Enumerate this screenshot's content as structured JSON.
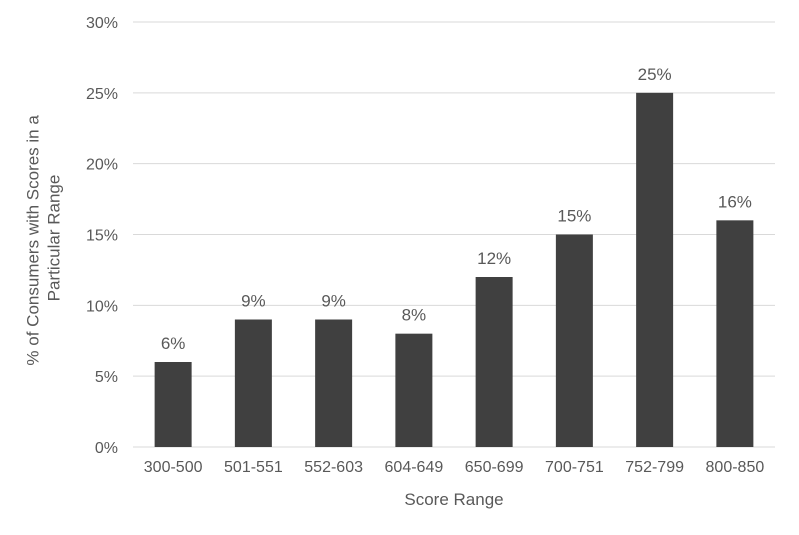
{
  "chart_data": {
    "type": "bar",
    "title": "",
    "xlabel": "Score Range",
    "ylabel_lines": [
      "% of Consumers with Scores in a",
      "Particular Range"
    ],
    "categories": [
      "300-500",
      "501-551",
      "552-603",
      "604-649",
      "650-699",
      "700-751",
      "752-799",
      "800-850"
    ],
    "values": [
      6,
      9,
      9,
      8,
      12,
      15,
      25,
      16
    ],
    "data_labels": [
      "6%",
      "9%",
      "9%",
      "8%",
      "12%",
      "15%",
      "25%",
      "16%"
    ],
    "ylim": [
      0,
      30
    ],
    "yticks": [
      0,
      5,
      10,
      15,
      20,
      25,
      30
    ],
    "ytick_labels": [
      "0%",
      "5%",
      "10%",
      "15%",
      "20%",
      "25%",
      "30%"
    ],
    "grid": true,
    "legend": "none",
    "bar_color": "#404040"
  }
}
